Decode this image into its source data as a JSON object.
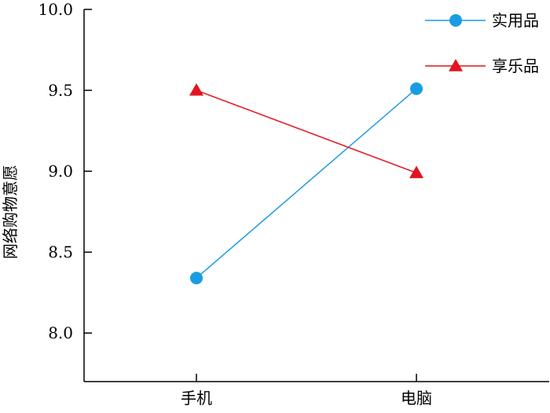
{
  "chart_data": {
    "type": "line",
    "title": "",
    "xlabel": "",
    "ylabel": "网络购物意愿",
    "categories": [
      "手机",
      "电脑"
    ],
    "ylim": [
      7.7,
      10.0
    ],
    "y_ticks": [
      8.0,
      8.5,
      9.0,
      9.5,
      10.0
    ],
    "y_tick_labels": [
      "8.0",
      "8.5",
      "9.0",
      "9.5",
      "10.0"
    ],
    "grid": false,
    "legend_position": "top-right",
    "series": [
      {
        "name": "实用品",
        "values": [
          8.34,
          9.51
        ],
        "color": "#1a9ce3",
        "marker": "circle"
      },
      {
        "name": "享乐品",
        "values": [
          9.5,
          8.99
        ],
        "color": "#e2141f",
        "marker": "triangle"
      }
    ]
  }
}
